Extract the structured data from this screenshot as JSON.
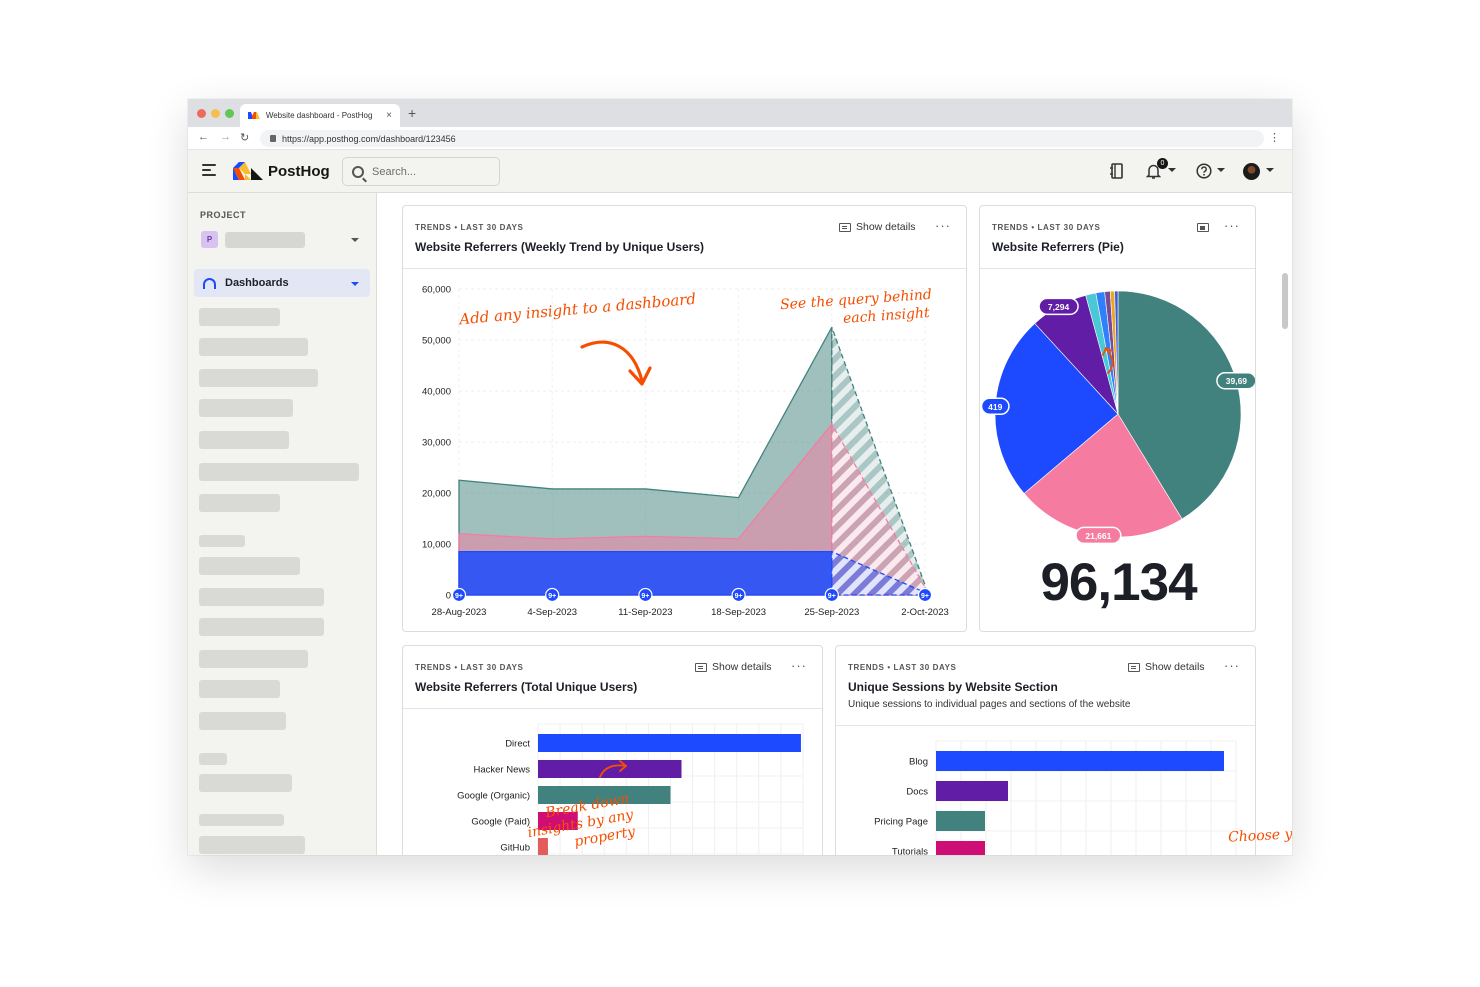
{
  "browser": {
    "tab_title": "Website dashboard - PostHog",
    "tab_close": "×",
    "new_tab": "+",
    "url": "https://app.posthog.com/dashboard/123456",
    "back": "←",
    "forward": "→",
    "reload": "↻",
    "menu": "⋮"
  },
  "header": {
    "logo_text": "PostHog",
    "search_placeholder": "Search...",
    "notification_count": "0",
    "icons": [
      "menu-icon",
      "notebook-icon",
      "bell-icon",
      "help-icon",
      "avatar"
    ]
  },
  "sidebar": {
    "project_label": "PROJECT",
    "project_badge": "P",
    "active_item": "Dashboards"
  },
  "cards": {
    "trend": {
      "kicker": "TRENDS • LAST 30 DAYS",
      "title": "Website Referrers (Weekly Trend by Unique Users)",
      "show_details": "Show details",
      "more": "···"
    },
    "pie": {
      "kicker": "TRENDS • LAST 30 DAYS",
      "title": "Website Referrers (Pie)",
      "more": "···",
      "total": "96,134"
    },
    "bars1": {
      "kicker": "TRENDS • LAST 30 DAYS",
      "title": "Website Referrers (Total Unique Users)",
      "show_details": "Show details",
      "more": "···"
    },
    "bars2": {
      "kicker": "TRENDS • LAST 30 DAYS",
      "title": "Unique Sessions by Website Section",
      "subtitle": "Unique sessions to individual pages and sections of the website",
      "show_details": "Show details",
      "more": "···"
    }
  },
  "annotations": {
    "add_insight": "Add any insight to a dashboard",
    "see_query_1": "See the query behind",
    "see_query_2": "each insight",
    "break_down_1": "Break down",
    "break_down_2": "insights by any",
    "break_down_3": "property",
    "choose_viz": "Choose your visualization type"
  },
  "colors": {
    "blue": "#1d4aff",
    "purple": "#621da6",
    "teal": "#42827e",
    "pink": "#f57ba0",
    "magenta": "#ce0e74",
    "red": "#e35b5b",
    "annotation": "#f54e00"
  },
  "chart_data": [
    {
      "type": "area",
      "x": [
        "28-Aug-2023",
        "4-Sep-2023",
        "11-Sep-2023",
        "18-Sep-2023",
        "25-Sep-2023",
        "2-Oct-2023"
      ],
      "ylim": [
        0,
        60000
      ],
      "y_ticks": [
        "60,000",
        "50,000",
        "40,000",
        "30,000",
        "20,000",
        "10,000",
        "0"
      ],
      "marker_label": "9+",
      "series": [
        {
          "color": "#42827e",
          "values": [
            22500,
            20800,
            20800,
            19100,
            52500,
            2000
          ]
        },
        {
          "color": "#f57ba0",
          "values": [
            12000,
            11000,
            11500,
            11000,
            33500,
            1500
          ]
        },
        {
          "color": "#1d4aff",
          "values": [
            8500,
            8500,
            8500,
            8500,
            8500,
            500
          ]
        }
      ],
      "grid": true
    },
    {
      "type": "pie",
      "slice_labels": [
        "7,294",
        "39,69",
        "419",
        "21,661"
      ],
      "slices": [
        {
          "value": 39690,
          "color": "#42827e"
        },
        {
          "value": 21661,
          "color": "#f57ba0"
        },
        {
          "value": 23419,
          "color": "#1d4aff"
        },
        {
          "value": 7294,
          "color": "#621da6"
        },
        {
          "value": 1300,
          "color": "#4ac8d6"
        },
        {
          "value": 1100,
          "color": "#2f80fa"
        },
        {
          "value": 700,
          "color": "#7a4a9a"
        },
        {
          "value": 550,
          "color": "#e9a822"
        },
        {
          "value": 420,
          "color": "#3b5bdb"
        }
      ]
    },
    {
      "type": "bar",
      "categories": [
        "Direct",
        "Hacker News",
        "Google (Organic)",
        "Google (Paid)",
        "GitHub"
      ],
      "values": [
        39690,
        21661,
        20000,
        6000,
        1500
      ],
      "colors": [
        "#1d4aff",
        "#621da6",
        "#42827e",
        "#ce0e74",
        "#e35b5b"
      ],
      "xlim": [
        0,
        40000
      ],
      "grid": true
    },
    {
      "type": "bar",
      "categories": [
        "Blog",
        "Docs",
        "Pricing Page",
        "Tutorials"
      ],
      "values": [
        28800,
        7200,
        4900,
        4900
      ],
      "colors": [
        "#1d4aff",
        "#621da6",
        "#42827e",
        "#ce0e74"
      ],
      "xlim": [
        0,
        30000
      ],
      "grid": true
    }
  ]
}
